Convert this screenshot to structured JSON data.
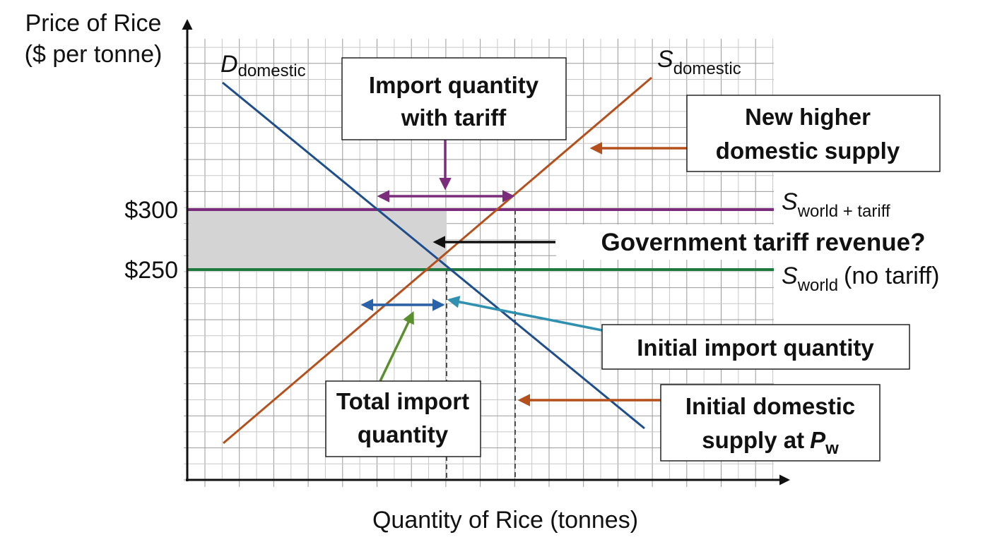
{
  "axes": {
    "y_label": [
      "Price of Rice",
      "($ per tonne)"
    ],
    "x_label": "Quantity of Rice (tonnes)",
    "price_labels": [
      "$300",
      "$250"
    ]
  },
  "curves": [
    {
      "symbol": "D",
      "subscript": "domestic"
    },
    {
      "symbol": "S",
      "subscript": "domestic"
    },
    {
      "symbol": "S",
      "subscript": "world + tariff"
    },
    {
      "symbol": "S",
      "subscript": "world",
      "suffix": "(no tariff)"
    }
  ],
  "annotations": [
    {
      "lines": [
        "Import quantity",
        "with tariff"
      ]
    },
    {
      "lines": [
        "New higher",
        "domestic supply"
      ]
    },
    {
      "lines": [
        "Government tariff revenue?"
      ]
    },
    {
      "lines": [
        "Initial import quantity"
      ]
    },
    {
      "lines": [
        "Total import",
        "quantity"
      ]
    },
    {
      "lines": [
        "Initial domestic",
        "supply at"
      ],
      "symbol": "P",
      "subscript": "w"
    }
  ]
}
